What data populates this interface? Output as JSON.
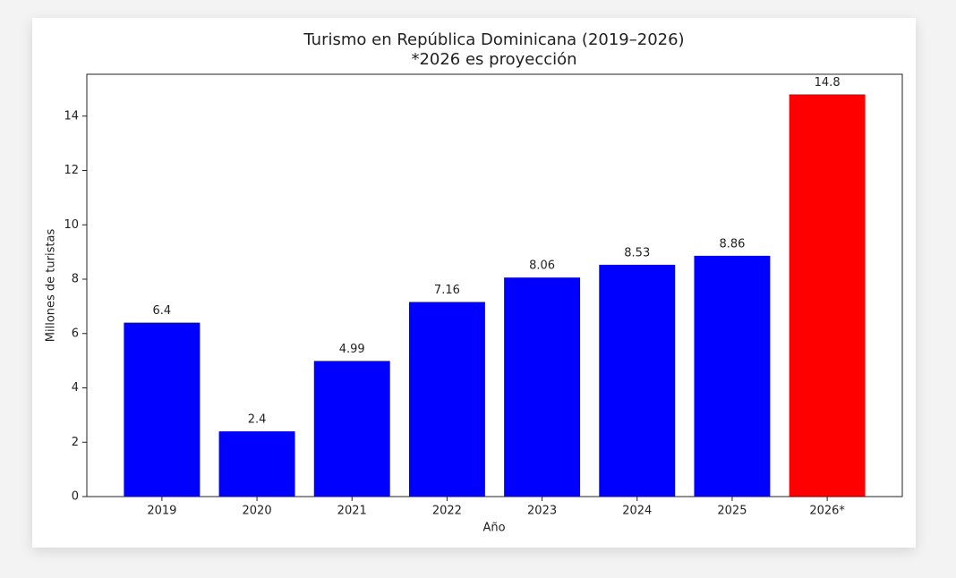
{
  "chart_data": {
    "type": "bar",
    "title": "Turismo en República Dominicana (2019–2026)",
    "subtitle": "*2026 es proyección",
    "x_label": "Año",
    "y_label": "Millones de turistas",
    "categories": [
      "2019",
      "2020",
      "2021",
      "2022",
      "2023",
      "2024",
      "2025",
      "2026*"
    ],
    "values": [
      6.4,
      2.4,
      4.99,
      7.16,
      8.06,
      8.53,
      8.86,
      14.8
    ],
    "colors": [
      "#0000ff",
      "#0000ff",
      "#0000ff",
      "#0000ff",
      "#0000ff",
      "#0000ff",
      "#0000ff",
      "#ff0000"
    ],
    "ylim": [
      0,
      15.54
    ],
    "yticks": [
      0,
      2,
      4,
      6,
      8,
      10,
      12,
      14
    ],
    "grid": false
  }
}
